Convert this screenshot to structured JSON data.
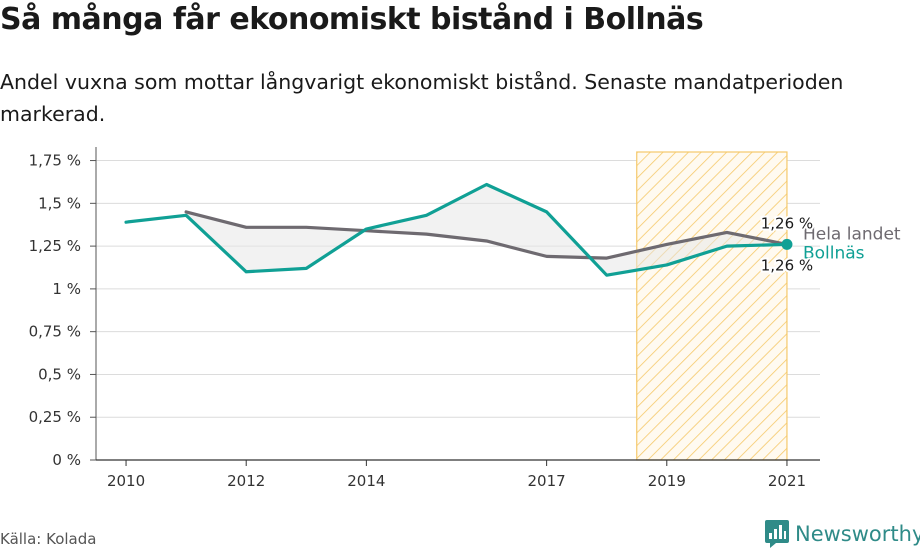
{
  "header": {
    "title": "Så många får ekonomiskt bistånd i Bollnäs",
    "subtitle": "Andel vuxna som mottar långvarigt ekonomiskt bistånd. Senaste mandatperioden markerad."
  },
  "footer": {
    "source": "Källa: Kolada",
    "brand": "Newsworthy"
  },
  "chart_data": {
    "type": "line",
    "title": "Så många får ekonomiskt bistånd i Bollnäs",
    "subtitle": "Andel vuxna som mottar långvarigt ekonomiskt bistånd. Senaste mandatperioden markerad.",
    "x": [
      2010,
      2011,
      2012,
      2013,
      2014,
      2015,
      2016,
      2017,
      2018,
      2019,
      2020,
      2021
    ],
    "x_ticks": [
      2010,
      2012,
      2014,
      2017,
      2019,
      2021
    ],
    "y_ticks": [
      0,
      0.25,
      0.5,
      0.75,
      1,
      1.25,
      1.5,
      1.75
    ],
    "y_tick_labels": [
      "0 %",
      "0,25 %",
      "0,5 %",
      "0,75 %",
      "1 %",
      "1,25 %",
      "1,5 %",
      "1,75 %"
    ],
    "ylim": [
      0,
      1.8
    ],
    "grid": true,
    "series": [
      {
        "name": "Hela landet",
        "color": "#6e6a70",
        "values": [
          null,
          1.45,
          1.36,
          1.36,
          1.34,
          1.32,
          1.28,
          1.19,
          1.18,
          1.26,
          1.33,
          1.26
        ],
        "end_label": "1,26 %"
      },
      {
        "name": "Bollnäs",
        "color": "#10a095",
        "values": [
          1.39,
          1.43,
          1.1,
          1.12,
          1.35,
          1.43,
          1.61,
          1.45,
          1.08,
          1.14,
          1.25,
          1.26
        ],
        "end_label": "1,26 %"
      }
    ],
    "highlight": {
      "from": 2018.5,
      "to": 2021,
      "color": "#f5c96a"
    }
  }
}
